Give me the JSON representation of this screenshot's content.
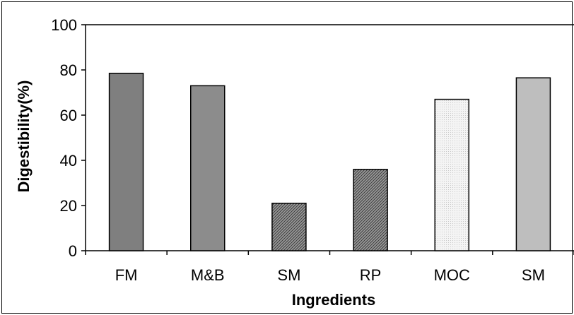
{
  "chart_data": {
    "type": "bar",
    "title": "",
    "xlabel": "Ingredients",
    "ylabel": "Digestibility(%)",
    "ylim": [
      0,
      100
    ],
    "yticks": [
      0,
      20,
      40,
      60,
      80,
      100
    ],
    "grid": false,
    "categories": [
      "FM",
      "M&B",
      "SM",
      "RP",
      "MOC",
      "SM"
    ],
    "values": [
      78.5,
      73,
      21,
      36,
      67,
      76.5
    ],
    "bar_colors": [
      "#7f7f7f",
      "#8c8c8c",
      "#6e6e6e",
      "#777777",
      "#f0f0f0",
      "#bebebe"
    ],
    "bar_patterns": [
      "solid",
      "solid",
      "hatch-dense",
      "hatch-dense",
      "dots-light",
      "solid"
    ]
  }
}
